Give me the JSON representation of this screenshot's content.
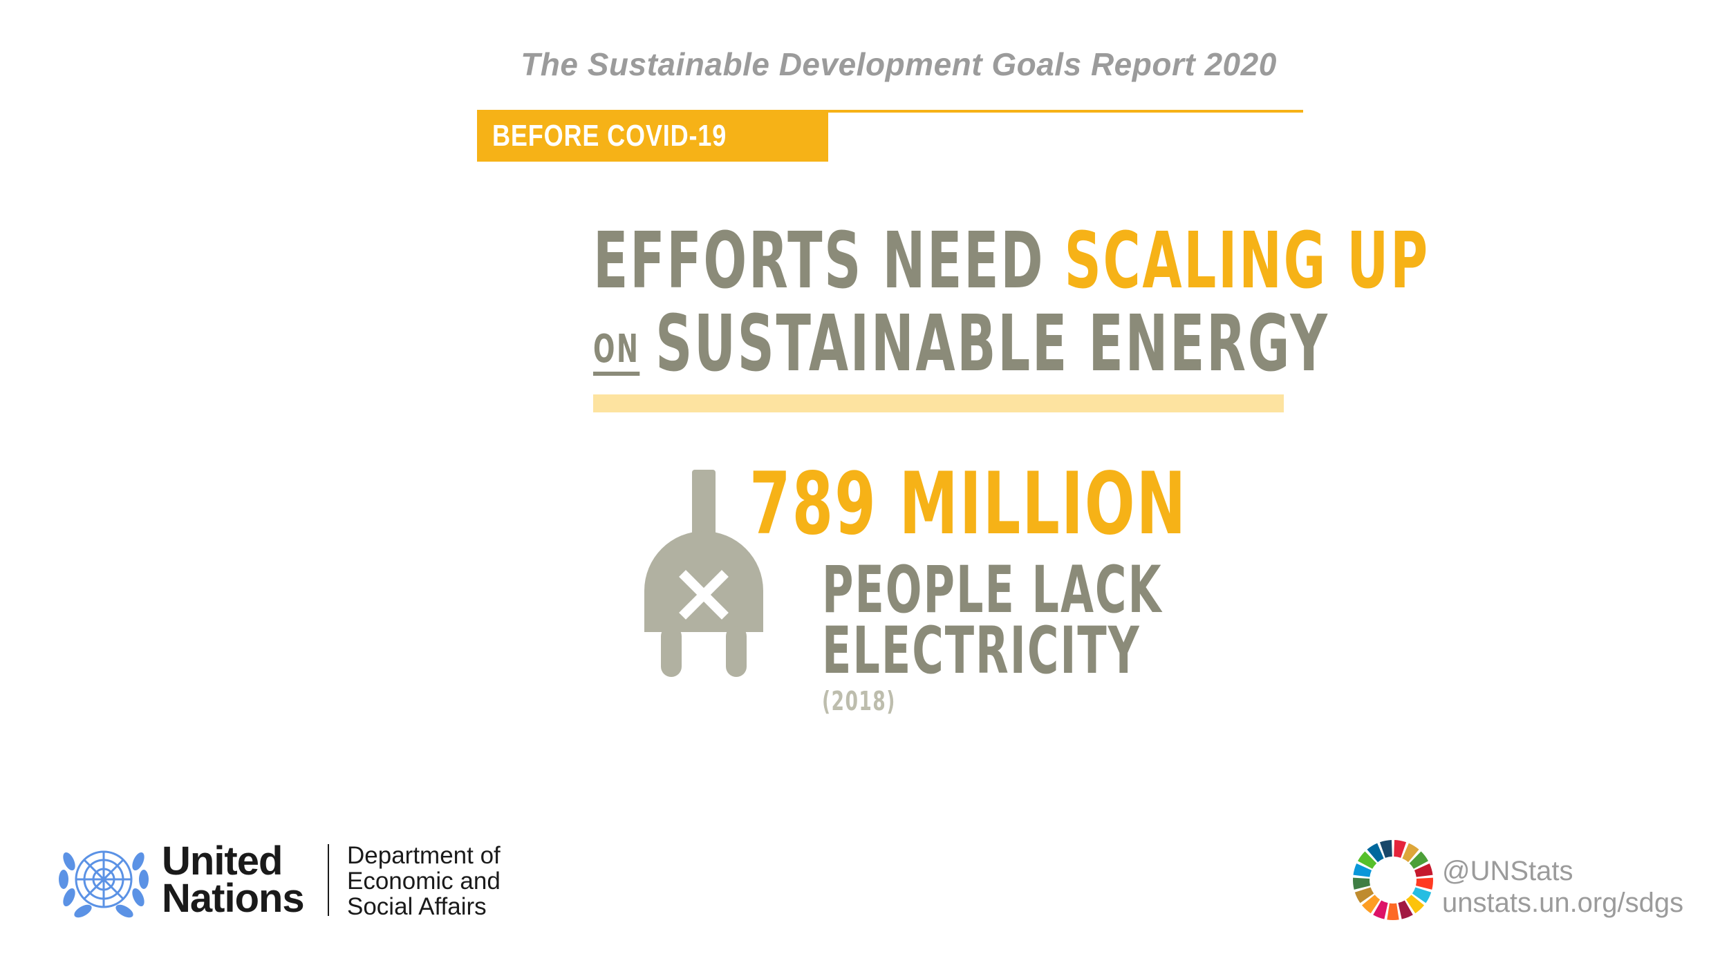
{
  "header": {
    "report_title": "The Sustainable Development Goals Report 2020",
    "tag_label": "BEFORE COVID-19"
  },
  "headline": {
    "line1_part1": "EFFORTS NEED",
    "line1_accent": "SCALING UP",
    "line2_small": "ON",
    "line2_part2": "SUSTAINABLE ENERGY"
  },
  "stat": {
    "value": "789 MILLION",
    "label_line1": "PEOPLE LACK",
    "label_line2": "ELECTRICITY",
    "year": "(2018)",
    "icon": "unplugged-plug-icon"
  },
  "footer": {
    "org_name_line1": "United",
    "org_name_line2": "Nations",
    "dept_line1": "Department of",
    "dept_line2": "Economic and",
    "dept_line3": "Social Affairs",
    "handle": "@UNStats",
    "url": "unstats.un.org/sdgs",
    "emblem_icon": "un-emblem-icon",
    "wheel_icon": "sdg-wheel-icon"
  },
  "colors": {
    "accent": "#f6b217",
    "accent_light": "#fde3a0",
    "text_olive": "#8b8b79",
    "un_blue": "#5b92e5",
    "title_grey": "#9b9b9b"
  }
}
